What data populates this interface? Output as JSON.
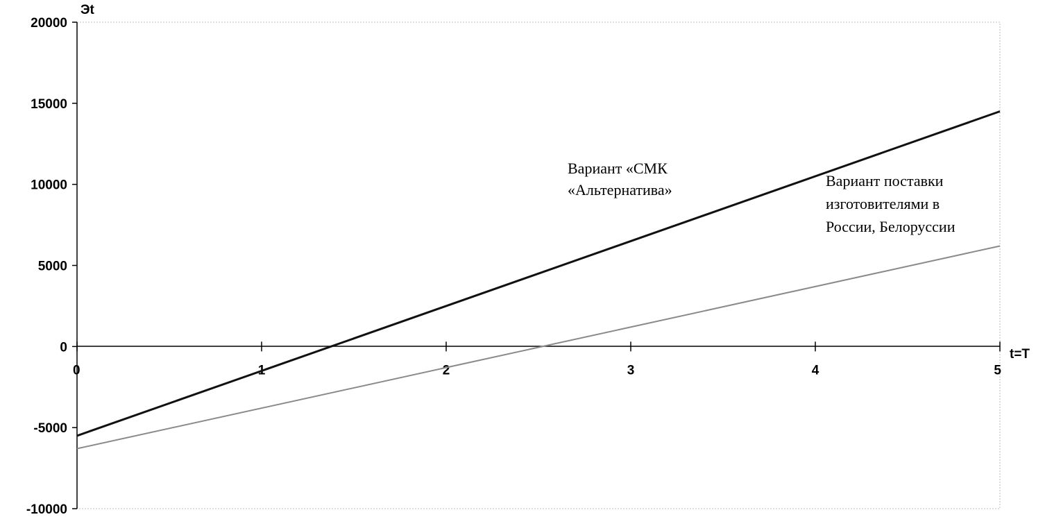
{
  "chart_data": {
    "type": "line",
    "title": "",
    "xlabel": "t=T",
    "ylabel": "Эt",
    "xlim": [
      0,
      5
    ],
    "ylim": [
      -10000,
      20000
    ],
    "x_ticks": [
      "0",
      "1",
      "2",
      "3",
      "4",
      "5"
    ],
    "y_ticks": [
      "20000",
      "15000",
      "10000",
      "5000",
      "0",
      "-5000",
      "-10000"
    ],
    "x_tick_values": [
      0,
      1,
      2,
      3,
      4,
      5
    ],
    "y_tick_values": [
      20000,
      15000,
      10000,
      5000,
      0,
      -5000,
      -10000
    ],
    "grid": false,
    "series": [
      {
        "x": [
          0,
          5
        ],
        "values": [
          -5500,
          14500
        ],
        "color": "#111111",
        "label": [
          "Вариант «СМК",
          "«Альтернатива»"
        ]
      },
      {
        "x": [
          0,
          5
        ],
        "values": [
          -6300,
          6200
        ],
        "color": "#8a8a8a",
        "label": [
          "Вариант поставки",
          "изготовителями в",
          "России, Белоруссии"
        ]
      }
    ]
  }
}
